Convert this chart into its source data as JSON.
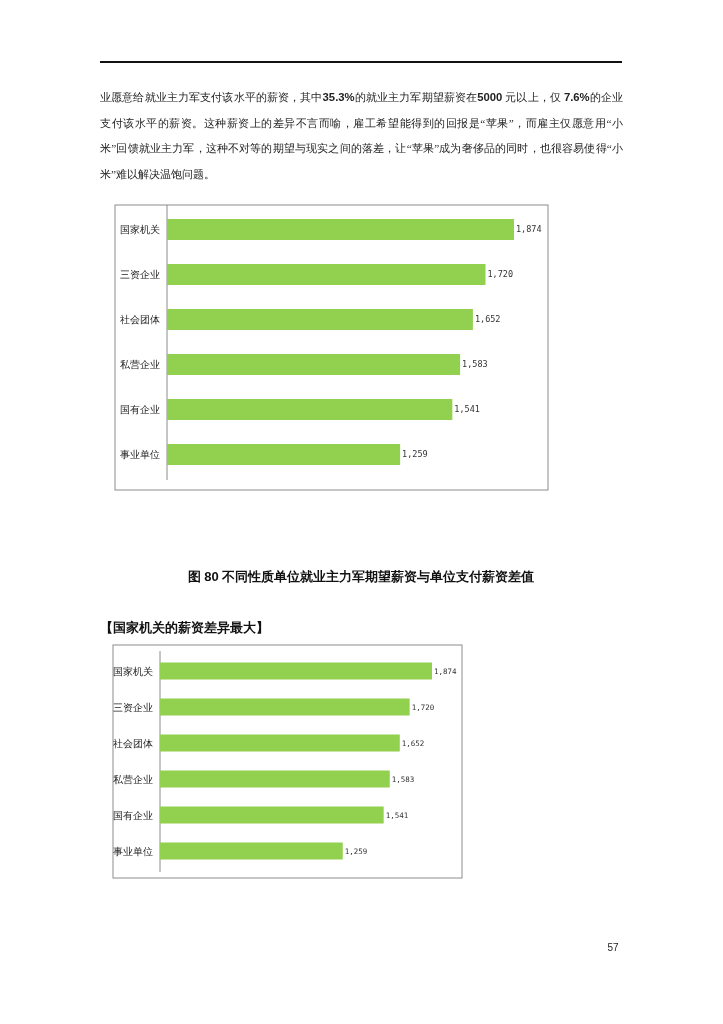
{
  "chart_data": [
    {
      "type": "bar",
      "orientation": "horizontal",
      "title": "图 80 不同性质单位就业主力军期望薪资与单位支付薪资差值",
      "annotations": [
        "业愿意给就业主力军支付该水平的薪资，其中**35.3%**的就业主力军期望薪资在**5000** 元以上，仅 **7.6%**的企业支付该水平的薪资。这种薪资上的差异不言而喻，雇工希望能得到的回报是“苹果”，而雇主仅愿意用“小米”回馈就业主力军，这种不对等的期望与现实之间的落差，让“苹果”成为奢侈品的同时，也很容易使得“小米”难以解决温饱问题。"
      ],
      "categories": [
        "国家机关",
        "三资企业",
        "社会团体",
        "私营企业",
        "国有企业",
        "事业单位"
      ],
      "values": [
        1874,
        1720,
        1652,
        1583,
        1541,
        1259
      ],
      "value_labels": [
        "1,874",
        "1,720",
        "1,652",
        "1,583",
        "1,541",
        "1,259"
      ],
      "color": "#92d050",
      "tick_labels": "y"
    },
    {
      "type": "bar",
      "orientation": "horizontal",
      "title": "【国家机关的薪资差异最大】",
      "annotations": [
        "57"
      ],
      "categories": [
        "国家机关",
        "三资企业",
        "社会团体",
        "私营企业",
        "国有企业",
        "事业单位"
      ],
      "values": [
        1874,
        1720,
        1652,
        1583,
        1541,
        1259
      ],
      "value_labels": [
        "1,874",
        "1,720",
        "1,652",
        "1,583",
        "1,541",
        "1,259"
      ],
      "color": "#92d050",
      "tick_labels": "y"
    }
  ]
}
